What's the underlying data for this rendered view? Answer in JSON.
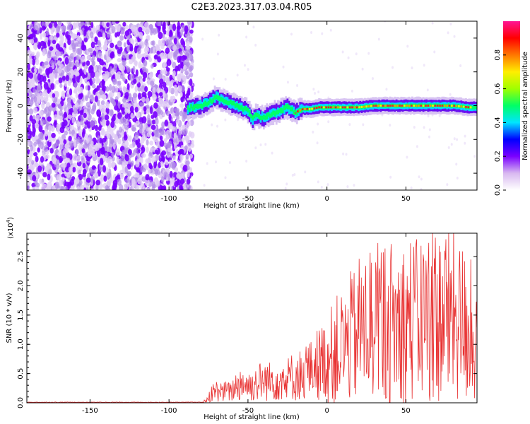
{
  "title": "C2E3.2023.317.03.04.R05",
  "chart_data": [
    {
      "type": "heatmap",
      "name": "spectrogram",
      "xlabel": "Height of straight line (km)",
      "ylabel": "Frequency (Hz)",
      "xlim": [
        -190,
        95
      ],
      "ylim": [
        -50,
        50
      ],
      "x_ticks": [
        -150,
        -100,
        -50,
        0,
        50
      ],
      "y_ticks": [
        -40,
        -20,
        0,
        20,
        40
      ],
      "noise_region_x": [
        -190,
        -88
      ],
      "signal_track": {
        "x": [
          -88,
          -85,
          -80,
          -75,
          -70,
          -65,
          -60,
          -55,
          -50,
          -47,
          -45,
          -40,
          -35,
          -30,
          -25,
          -20,
          -15,
          -10,
          -5,
          0,
          10,
          20,
          30,
          40,
          50,
          60,
          70,
          80,
          90,
          95
        ],
        "frequency": [
          -2,
          -1,
          0,
          2,
          5,
          3,
          1,
          -1,
          -3,
          -8,
          -6,
          -7,
          -5,
          -3,
          -1,
          -4,
          -2,
          -2,
          -1,
          -1,
          -1,
          -1,
          0,
          0,
          0,
          0,
          0,
          0,
          -1,
          -1
        ]
      },
      "colorbar": {
        "label": "Normalized spectral amplitude",
        "range": [
          0.0,
          1.0
        ],
        "ticks": [
          0.0,
          0.2,
          0.4,
          0.6,
          0.8
        ],
        "colors": [
          "#ffffff",
          "#d8b8f0",
          "#7a00ff",
          "#0000ff",
          "#00e5ff",
          "#00ff66",
          "#a0ff00",
          "#ffee00",
          "#ff7700",
          "#ff0000",
          "#ff1493"
        ]
      }
    },
    {
      "type": "line",
      "name": "snr",
      "xlabel": "Height of straight line (km)",
      "ylabel": "SNR (10 * v/v)",
      "y_scale_label": "(x10",
      "y_scale_exp": "4",
      "y_scale_close": ")",
      "xlim": [
        -190,
        95
      ],
      "ylim": [
        0,
        2.9
      ],
      "x_ticks": [
        -150,
        -100,
        -50,
        0,
        50
      ],
      "y_ticks": [
        0.0,
        0.5,
        1.0,
        1.5,
        2.0,
        2.5
      ],
      "series": [
        {
          "name": "SNR",
          "color": "#e83030",
          "x": [
            -190,
            -160,
            -130,
            -100,
            -90,
            -80,
            -76,
            -74,
            -72,
            -70,
            -68,
            -66,
            -64,
            -62,
            -60,
            -58,
            -56,
            -54,
            -52,
            -50,
            -48,
            -46,
            -44,
            -42,
            -40,
            -38,
            -36,
            -34,
            -32,
            -30,
            -28,
            -26,
            -24,
            -22,
            -20,
            -18,
            -16,
            -14,
            -12,
            -10,
            -8,
            -6,
            -4,
            -2,
            0,
            2,
            4,
            6,
            8,
            10,
            12,
            14,
            16,
            18,
            20,
            22,
            24,
            26,
            28,
            30,
            32,
            34,
            36,
            38,
            40,
            42,
            44,
            46,
            48,
            50,
            52,
            54,
            56,
            58,
            60,
            62,
            64,
            66,
            68,
            70,
            72,
            74,
            76,
            78,
            80,
            82,
            84,
            86,
            88,
            90,
            92,
            94
          ],
          "mean": [
            0.01,
            0.01,
            0.01,
            0.01,
            0.01,
            0.01,
            0.05,
            0.15,
            0.18,
            0.2,
            0.25,
            0.15,
            0.22,
            0.18,
            0.2,
            0.28,
            0.3,
            0.35,
            0.32,
            0.3,
            0.28,
            0.35,
            0.3,
            0.38,
            0.35,
            0.4,
            0.36,
            0.42,
            0.38,
            0.45,
            0.4,
            0.38,
            0.42,
            0.45,
            0.4,
            0.5,
            0.45,
            0.55,
            0.6,
            0.55,
            0.7,
            0.65,
            0.7,
            0.72,
            0.75,
            0.8,
            0.85,
            0.9,
            0.95,
            0.95,
            0.95,
            1.05,
            1.15,
            1.1,
            1.25,
            1.3,
            1.25,
            1.35,
            1.4,
            1.45,
            1.35,
            1.4,
            1.45,
            1.38,
            1.4,
            1.35,
            1.3,
            1.4,
            1.35,
            1.45,
            1.38,
            1.48,
            1.4,
            1.35,
            1.45,
            1.5,
            1.48,
            1.55,
            1.5,
            1.45,
            1.5,
            1.55,
            1.5,
            1.45,
            1.5,
            1.45,
            1.35,
            1.4,
            1.2,
            1.1,
            1.0,
            1.0
          ],
          "peaks_x": [
            12,
            31,
            39,
            57,
            67,
            91
          ],
          "peaks_y": [
            0.8,
            2.4,
            2.0,
            2.0,
            2.95,
            2.45
          ]
        }
      ]
    }
  ]
}
